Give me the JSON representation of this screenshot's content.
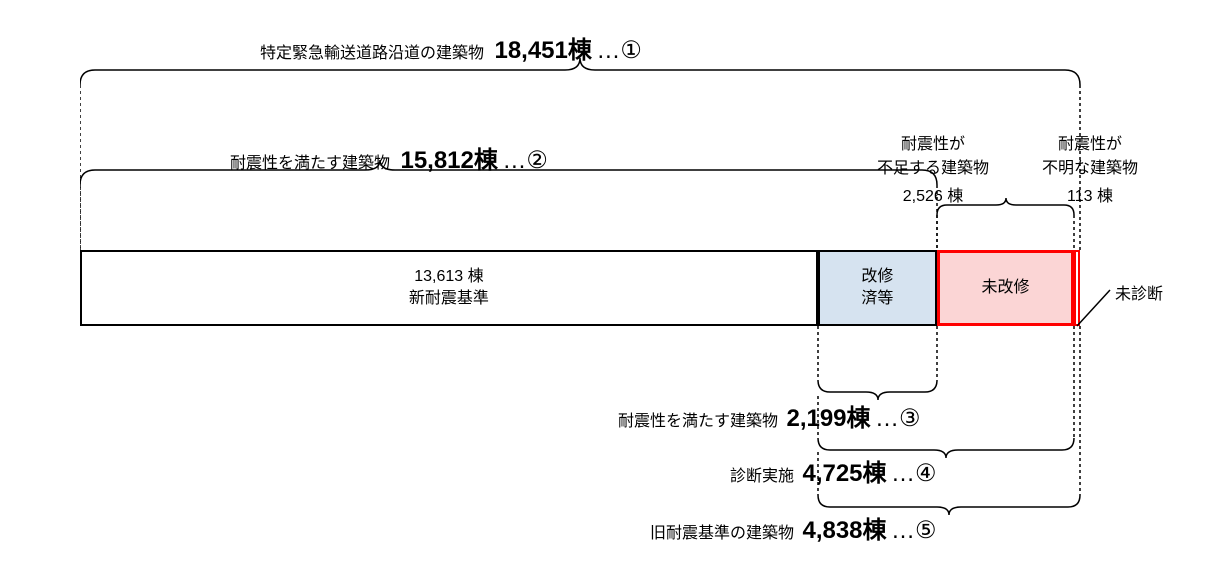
{
  "title": {
    "label_prefix": "特定緊急輸送道路沿道の建築物",
    "value": "18,451棟",
    "suffix": "…①"
  },
  "satisfies": {
    "label_prefix": "耐震性を満たす建築物",
    "value": "15,812棟",
    "suffix": "…②"
  },
  "insufficient_header": {
    "line1": "耐震性が",
    "line2": "不足する建築物",
    "count": "2,526 棟"
  },
  "unknown_header": {
    "line1": "耐震性が",
    "line2": "不明な建築物",
    "count": "113 棟"
  },
  "bar": {
    "total_width": 1000,
    "segments": [
      {
        "key": "new_standard",
        "width_pct": 73.78,
        "text_line1": "13,613 棟",
        "text_line2": "新耐震基準",
        "fill": "#ffffff",
        "border_color": "#000000",
        "border_width": 2
      },
      {
        "key": "renovated",
        "width_pct": 11.92,
        "text_line1": "改修",
        "text_line2": "済等",
        "fill": "#d6e3f0",
        "border_color": "#000000",
        "border_width": 2
      },
      {
        "key": "not_renovated",
        "width_pct": 13.69,
        "text_line1": "未改修",
        "text_line2": "",
        "fill": "#fbd5d5",
        "border_color": "#ff0000",
        "border_width": 3
      },
      {
        "key": "not_diagnosed",
        "width_pct": 0.61,
        "text_line1": "",
        "text_line2": "",
        "fill": "#ffffff",
        "border_color": "#ff0000",
        "border_width": 2
      }
    ]
  },
  "not_diagnosed_label": "未診断",
  "bottom1": {
    "label_prefix": "耐震性を満たす建築物",
    "value": "2,199棟",
    "suffix": "…③"
  },
  "bottom2": {
    "label_prefix": "診断実施",
    "value": "4,725棟",
    "suffix": "…④"
  },
  "bottom3": {
    "label_prefix": "旧耐震基準の建築物",
    "value": "4,838棟",
    "suffix": "…⑤"
  },
  "colors": {
    "text": "#000000",
    "dash": "#000000"
  }
}
